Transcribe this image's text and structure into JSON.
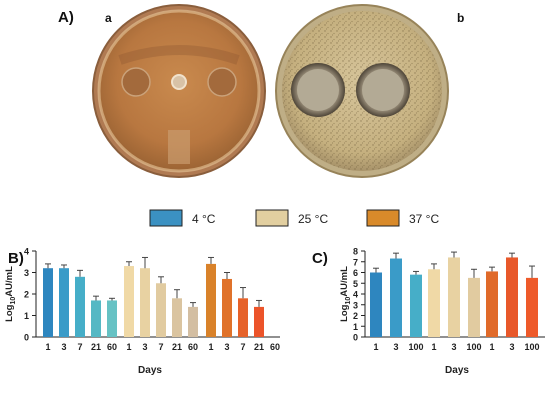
{
  "panel_a": {
    "label": "A)",
    "plate_a_label": "a",
    "plate_b_label": "b"
  },
  "legend": {
    "items": [
      {
        "label": "4 °C",
        "color": "#3b91c2"
      },
      {
        "label": "25 °C",
        "color": "#e2cfa0"
      },
      {
        "label": "37 °C",
        "color": "#d98a2a"
      }
    ]
  },
  "chart_data": [
    {
      "panel_label": "B)",
      "type": "bar",
      "xlabel": "Days",
      "ylabel_base": "Log",
      "ylabel_sub": "10",
      "ylabel_rest": "AU/mL",
      "ylim": [
        0,
        4
      ],
      "yticks": [
        "0",
        "1",
        "2",
        "3",
        "4"
      ],
      "groups": [
        {
          "temperature": "4 °C",
          "categories": [
            "1",
            "3",
            "7",
            "21",
            "60"
          ],
          "values": [
            3.2,
            3.2,
            2.8,
            1.7,
            1.7
          ],
          "errors": [
            0.2,
            0.15,
            0.3,
            0.2,
            0.1
          ],
          "colors": [
            "#2e86bf",
            "#3a9bc8",
            "#46aec8",
            "#55b8c4",
            "#66c2c4"
          ]
        },
        {
          "temperature": "25 °C",
          "categories": [
            "1",
            "3",
            "7",
            "21",
            "60"
          ],
          "values": [
            3.3,
            3.2,
            2.5,
            1.8,
            1.4
          ],
          "errors": [
            0.2,
            0.5,
            0.3,
            0.4,
            0.2
          ],
          "colors": [
            "#f0d9a6",
            "#e8d2a2",
            "#e1cba0",
            "#dac4a0",
            "#d3bea2"
          ]
        },
        {
          "temperature": "37 °C",
          "categories": [
            "1",
            "3",
            "7",
            "21",
            "60"
          ],
          "values": [
            3.4,
            2.7,
            1.8,
            1.4,
            0
          ],
          "errors": [
            0.3,
            0.3,
            0.5,
            0.3,
            0
          ],
          "colors": [
            "#d9822a",
            "#e0722a",
            "#e6622a",
            "#ec542a",
            "#f04a2a"
          ]
        }
      ]
    },
    {
      "panel_label": "C)",
      "type": "bar",
      "xlabel": "Days",
      "ylabel_base": "Log",
      "ylabel_sub": "10",
      "ylabel_rest": "AU/mL",
      "ylim": [
        0,
        8
      ],
      "yticks": [
        "0",
        "1",
        "2",
        "3",
        "4",
        "5",
        "6",
        "7",
        "8"
      ],
      "groups": [
        {
          "temperature": "4 °C",
          "categories": [
            "1",
            "3",
            "100"
          ],
          "values": [
            6.0,
            7.3,
            5.8
          ],
          "errors": [
            0.4,
            0.5,
            0.3
          ],
          "colors": [
            "#2e86bf",
            "#3a9bc8",
            "#46aec8"
          ]
        },
        {
          "temperature": "25 °C",
          "categories": [
            "1",
            "3",
            "100"
          ],
          "values": [
            6.3,
            7.4,
            5.5
          ],
          "errors": [
            0.5,
            0.5,
            0.8
          ],
          "colors": [
            "#f0d9a6",
            "#e8d2a2",
            "#e1cba0"
          ]
        },
        {
          "temperature": "37 °C",
          "categories": [
            "1",
            "3",
            "100"
          ],
          "values": [
            6.1,
            7.4,
            5.5
          ],
          "errors": [
            0.4,
            0.4,
            1.1
          ],
          "colors": [
            "#e06a2a",
            "#e8582a",
            "#ee5a2a"
          ]
        }
      ]
    }
  ]
}
